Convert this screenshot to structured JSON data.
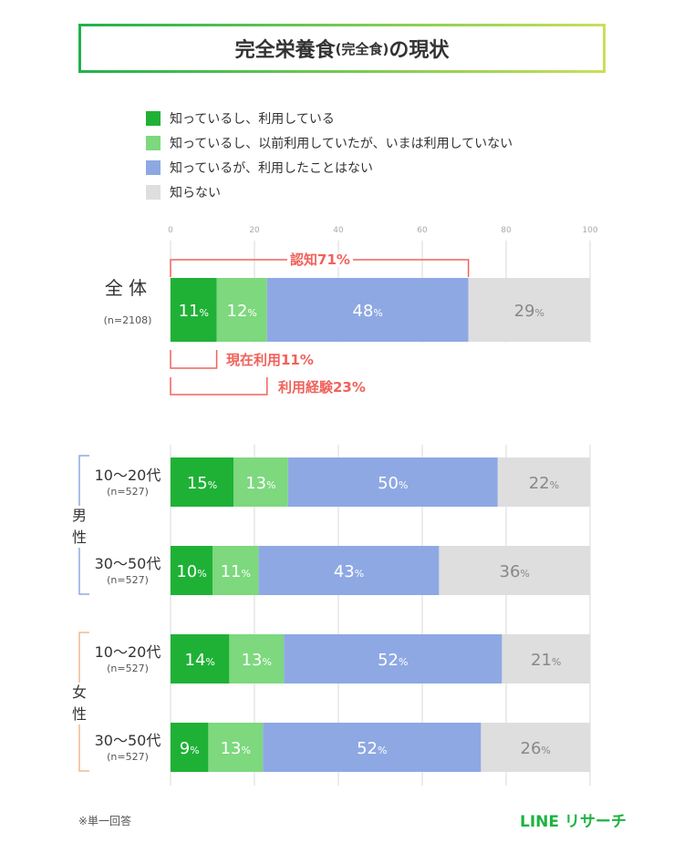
{
  "title": {
    "main1": "完全栄養食",
    "paren": "(完全食)",
    "main2": "の現状"
  },
  "legend": [
    {
      "label": "知っているし、利用している",
      "color": "#1fb136"
    },
    {
      "label": "知っているし、以前利用していたが、いまは利用していない",
      "color": "#7dd87e"
    },
    {
      "label": "知っているが、利用したことはない",
      "color": "#8ea8e3"
    },
    {
      "label": "知らない",
      "color": "#dedede"
    }
  ],
  "chart_data": {
    "type": "bar",
    "orientation": "horizontal",
    "stacked": true,
    "x_ticks": [
      "0",
      "20",
      "40",
      "60",
      "80",
      "100"
    ],
    "xlim": [
      0,
      100
    ],
    "value_suffix": "%",
    "colors": [
      "#1fb136",
      "#7dd87e",
      "#8ea8e3",
      "#dedede"
    ],
    "rows": [
      {
        "label": "全 体",
        "n": "(n=2108)",
        "group": "",
        "values": [
          11,
          12,
          48,
          29
        ]
      },
      {
        "label": "10〜20代",
        "n": "(n=527)",
        "group": "男性",
        "values": [
          15,
          13,
          50,
          22
        ]
      },
      {
        "label": "30〜50代",
        "n": "(n=527)",
        "group": "男性",
        "values": [
          10,
          11,
          43,
          36
        ]
      },
      {
        "label": "10〜20代",
        "n": "(n=527)",
        "group": "女性",
        "values": [
          14,
          13,
          52,
          21
        ]
      },
      {
        "label": "30〜50代",
        "n": "(n=527)",
        "group": "女性",
        "values": [
          9,
          13,
          52,
          26
        ]
      }
    ],
    "groups": [
      {
        "chars": [
          "男",
          "性"
        ],
        "color": "#8ea8e3"
      },
      {
        "chars": [
          "女",
          "性"
        ],
        "color": "#f2b98f"
      }
    ],
    "annotations": [
      {
        "text": "認知71%",
        "value": 71
      },
      {
        "text": "現在利用11%",
        "value": 11
      },
      {
        "text": "利用経験23%",
        "value": 23
      }
    ],
    "annotation_color": "#f0625b"
  },
  "footnote": "※単一回答",
  "logo": "LINE リサーチ"
}
